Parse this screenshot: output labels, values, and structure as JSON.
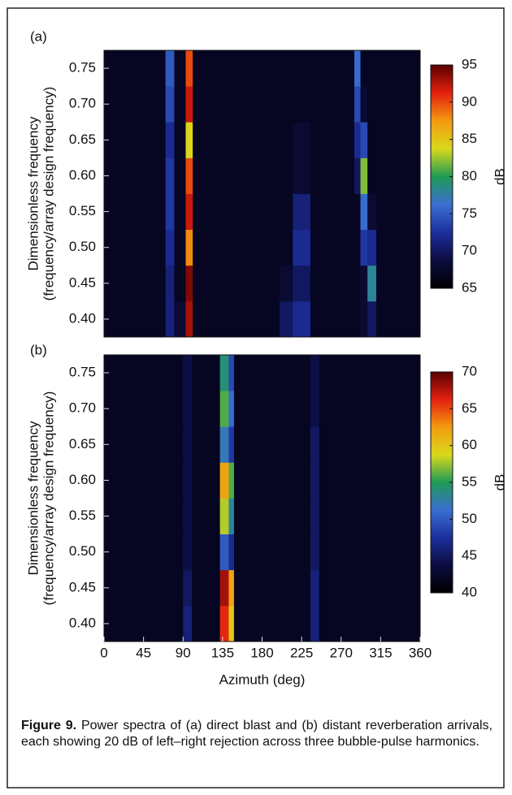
{
  "chart_data": [
    {
      "type": "heatmap",
      "panel_label": "(a)",
      "ylabel": [
        "Dimensionless frequency",
        "(frequency/array design frequency)"
      ],
      "xlim": [
        0,
        360
      ],
      "ylim": [
        0.375,
        0.775
      ],
      "yticks": [
        {
          "value": 0.4,
          "label": "0.40"
        },
        0.45,
        {
          "value": 0.5,
          "label": "0.50"
        },
        0.55,
        {
          "value": 0.6,
          "label": "0.60"
        },
        0.65,
        {
          "value": 0.7,
          "label": "0.70"
        },
        0.75
      ],
      "x_edges": [
        0,
        70,
        80,
        93,
        101,
        200,
        215,
        235,
        285,
        292,
        300,
        310,
        360
      ],
      "y": [
        0.4,
        0.45,
        0.5,
        0.55,
        0.6,
        0.65,
        0.7,
        0.75
      ],
      "z": [
        [
          67,
          71,
          68,
          93,
          67,
          70,
          72,
          67,
          67,
          68,
          70,
          67
        ],
        [
          67,
          71,
          67,
          94,
          67,
          68,
          70,
          67,
          67,
          68,
          78,
          67
        ],
        [
          67,
          72,
          67,
          88,
          67,
          67,
          72,
          67,
          67,
          73,
          72,
          67
        ],
        [
          67,
          73,
          67,
          92,
          67,
          67,
          71,
          67,
          67,
          76,
          68,
          67
        ],
        [
          67,
          73,
          67,
          90,
          67,
          67,
          68,
          67,
          70,
          82,
          67,
          67
        ],
        [
          67,
          72,
          67,
          84,
          67,
          67,
          68,
          67,
          72,
          74,
          67,
          67
        ],
        [
          67,
          74,
          67,
          92,
          67,
          67,
          67,
          67,
          74,
          68,
          67,
          67
        ],
        [
          67,
          75,
          67,
          90,
          67,
          67,
          67,
          67,
          76,
          67,
          67,
          67
        ]
      ],
      "clim": [
        65,
        95
      ],
      "cticks": [
        65,
        70,
        75,
        80,
        85,
        90,
        95
      ],
      "clabel": "dB",
      "colormap": [
        "#000000",
        "#0c0c40",
        "#1c2f9c",
        "#3a6fd0",
        "#1f9a55",
        "#d9d91c",
        "#f39a10",
        "#e3200f",
        "#5a0000"
      ]
    },
    {
      "type": "heatmap",
      "panel_label": "(b)",
      "ylabel": [
        "Dimensionless frequency",
        "(frequency/array design frequency)"
      ],
      "xlabel": "Azimuth (deg)",
      "xlim": [
        0,
        360
      ],
      "xticks": [
        0,
        45,
        90,
        135,
        180,
        225,
        270,
        315,
        360
      ],
      "ylim": [
        0.375,
        0.775
      ],
      "yticks": [
        {
          "value": 0.4,
          "label": "0.40"
        },
        0.45,
        {
          "value": 0.5,
          "label": "0.50"
        },
        0.55,
        {
          "value": 0.6,
          "label": "0.60"
        },
        0.65,
        {
          "value": 0.7,
          "label": "0.70"
        },
        0.75
      ],
      "x_edges": [
        0,
        90,
        100,
        132,
        142,
        148,
        235,
        245,
        360
      ],
      "y": [
        0.4,
        0.45,
        0.5,
        0.55,
        0.6,
        0.65,
        0.7,
        0.75
      ],
      "z": [
        [
          42,
          46,
          42,
          66,
          60,
          42,
          46,
          42
        ],
        [
          42,
          45,
          42,
          68,
          62,
          42,
          46,
          42
        ],
        [
          42,
          44,
          42,
          50,
          47,
          42,
          45,
          42
        ],
        [
          42,
          44,
          42,
          58,
          53,
          42,
          45,
          42
        ],
        [
          42,
          44,
          42,
          62,
          56,
          42,
          45,
          42
        ],
        [
          42,
          44,
          42,
          52,
          48,
          42,
          45,
          42
        ],
        [
          42,
          44,
          42,
          56,
          51,
          42,
          44,
          42
        ],
        [
          42,
          44,
          42,
          54,
          49,
          42,
          44,
          42
        ]
      ],
      "clim": [
        40,
        70
      ],
      "cticks": [
        40,
        45,
        50,
        55,
        60,
        65,
        70
      ],
      "clabel": "dB",
      "colormap": [
        "#000000",
        "#0c0c40",
        "#1c2f9c",
        "#3a6fd0",
        "#1f9a55",
        "#d9d91c",
        "#f39a10",
        "#e3200f",
        "#5a0000"
      ]
    }
  ],
  "caption": {
    "label": "Figure 9.",
    "text": "Power spectra of (a) direct blast and (b) distant reverberation arrivals, each showing 20 dB of left–right rejection across three bubble-pulse harmonics."
  }
}
